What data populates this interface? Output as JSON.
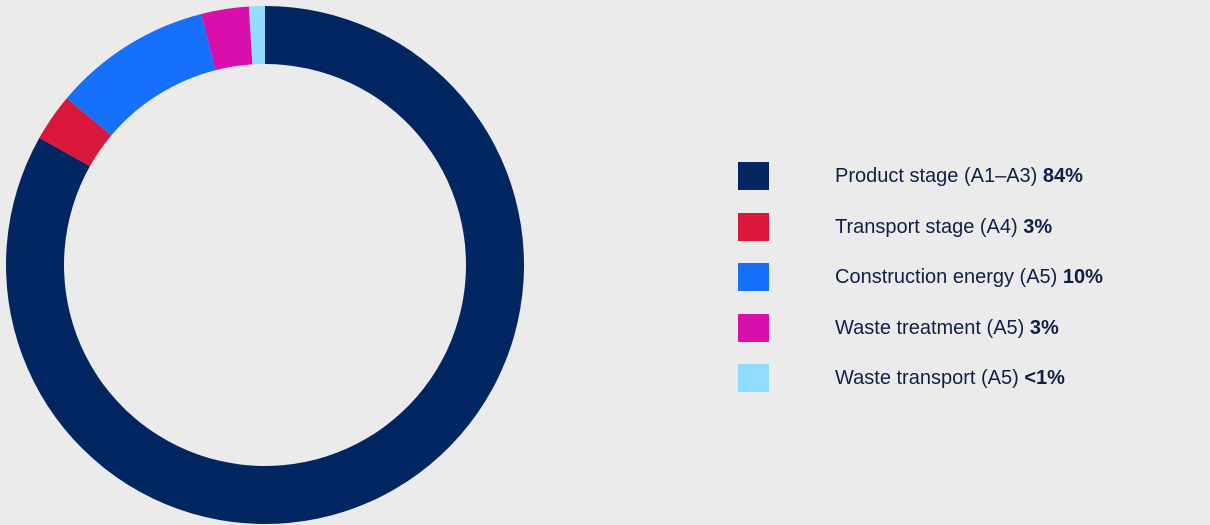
{
  "chart_data": {
    "type": "pie",
    "donut": true,
    "title": "",
    "legend_position": "right",
    "series": [
      {
        "name": "Product stage (A1–A3)",
        "value": 84,
        "label": "84%",
        "color": "#012661"
      },
      {
        "name": "Transport stage (A4)",
        "value": 3,
        "label": "3%",
        "color": "#d9173b"
      },
      {
        "name": "Construction energy (A5)",
        "value": 10,
        "label": "10%",
        "color": "#1670fb"
      },
      {
        "name": "Waste treatment (A5)",
        "value": 3,
        "label": "3%",
        "color": "#d90fac"
      },
      {
        "name": "Waste transport (A5)",
        "value": 1,
        "label": "<1%",
        "color": "#8fdcff"
      }
    ]
  }
}
